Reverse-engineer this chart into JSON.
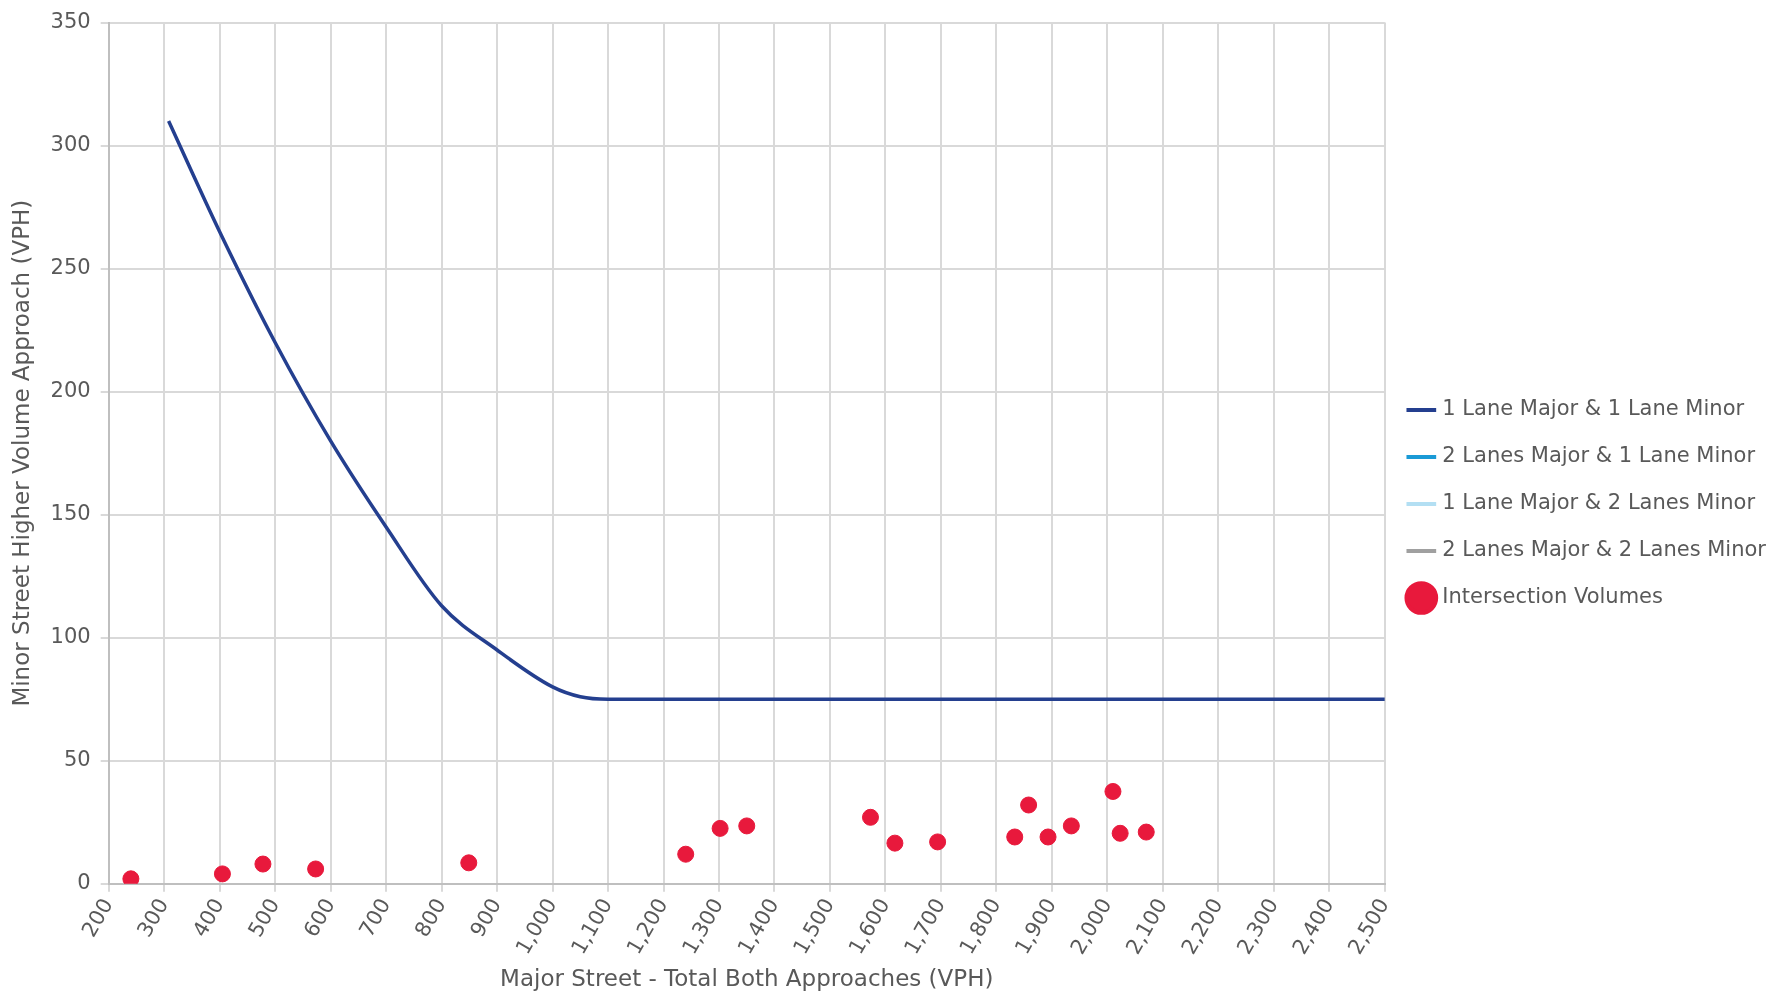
{
  "chart_data": {
    "type": "scatter",
    "xlabel": "Major Street - Total Both Approaches (VPH)",
    "ylabel": "Minor Street Higher Volume Approach (VPH)",
    "xlim": [
      200,
      2500
    ],
    "xticks": [
      {
        "value": 200,
        "label": "200"
      },
      {
        "value": 300,
        "label": "300"
      },
      {
        "value": 400,
        "label": "400"
      },
      {
        "value": 500,
        "label": "500"
      },
      {
        "value": 600,
        "label": "600"
      },
      {
        "value": 700,
        "label": "700"
      },
      {
        "value": 800,
        "label": "800"
      },
      {
        "value": 900,
        "label": "900"
      },
      {
        "value": 1000,
        "label": "1,000"
      },
      {
        "value": 1100,
        "label": "1,100"
      },
      {
        "value": 1200,
        "label": "1,200"
      },
      {
        "value": 1300,
        "label": "1,300"
      },
      {
        "value": 1400,
        "label": "1,400"
      },
      {
        "value": 1500,
        "label": "1,500"
      },
      {
        "value": 1600,
        "label": "1,600"
      },
      {
        "value": 1700,
        "label": "1,700"
      },
      {
        "value": 1800,
        "label": "1,800"
      },
      {
        "value": 1900,
        "label": "1,900"
      },
      {
        "value": 2000,
        "label": "2,000"
      },
      {
        "value": 2100,
        "label": "2,100"
      },
      {
        "value": 2200,
        "label": "2,200"
      },
      {
        "value": 2300,
        "label": "2,300"
      },
      {
        "value": 2400,
        "label": "2,400"
      },
      {
        "value": 2500,
        "label": "2,500"
      }
    ],
    "ylim": [
      0,
      350
    ],
    "yticks": [
      0,
      50,
      100,
      150,
      200,
      250,
      300,
      350
    ],
    "grid": true,
    "legend": "right",
    "series": [
      {
        "name": "1 Lane Major & 1 Lane Minor",
        "type": "line",
        "color": "#243f8f",
        "marker": "none",
        "x": [
          308,
          400,
          500,
          600,
          700,
          800,
          900,
          1000,
          1050,
          1100,
          1150,
          1200,
          2500
        ],
        "values": [
          310,
          265,
          220,
          180,
          145,
          113,
          95,
          80,
          76,
          75,
          75,
          75,
          75
        ]
      },
      {
        "name": "2 Lanes Major & 1 Lane Minor",
        "type": "line",
        "color": "#1a9ad6",
        "marker": "none"
      },
      {
        "name": "1 Lane Major & 2 Lanes Minor",
        "type": "line",
        "color": "#b3dff3",
        "marker": "none"
      },
      {
        "name": "2 Lanes Major & 2 Lanes Minor",
        "type": "line",
        "color": "#a0a0a0",
        "marker": "none"
      },
      {
        "name": "Intersection Volumes",
        "type": "scatter",
        "color": "#e8193c",
        "marker": "circle",
        "x": [
          240,
          405,
          478,
          573,
          849,
          1240,
          1302,
          1350,
          1573,
          1617,
          1694,
          1833,
          1858,
          1893,
          1935,
          2010,
          2023,
          2070
        ],
        "values": [
          2,
          4,
          8,
          6,
          8.5,
          12,
          22.5,
          23.5,
          27,
          16.5,
          17,
          19,
          32,
          19,
          23.5,
          37.5,
          20.5,
          21
        ]
      }
    ]
  }
}
